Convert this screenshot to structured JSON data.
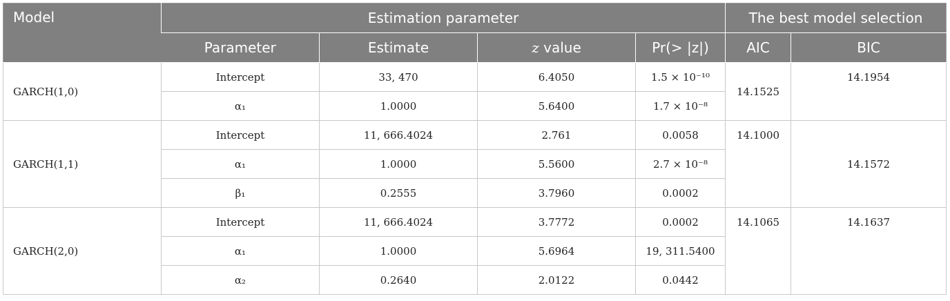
{
  "header": {
    "model": "Model",
    "estimation": "Estimation parameter",
    "best": "The best model selection",
    "parameter": "Parameter",
    "estimate": "Estimate",
    "z_var": "z",
    "z_value": " value",
    "pr": "Pr(> |z|)",
    "aic": "AIC",
    "bic": "BIC"
  },
  "groups": [
    {
      "model": "GARCH(1,0)",
      "aic": "14.1525",
      "bic": "14.1954",
      "rows": [
        {
          "parameter": "Intercept",
          "estimate": "33, 470",
          "z": "6.4050",
          "pr": "1.5 × 10⁻¹⁰"
        },
        {
          "parameter": "α₁",
          "estimate": "1.0000",
          "z": "5.6400",
          "pr": "1.7 × 10⁻⁸"
        }
      ]
    },
    {
      "model": "GARCH(1,1)",
      "aic": "14.1000",
      "bic": "14.1572",
      "rows": [
        {
          "parameter": "Intercept",
          "estimate": "11, 666.4024",
          "z": "2.761",
          "pr": "0.0058"
        },
        {
          "parameter": "α₁",
          "estimate": "1.0000",
          "z": "5.5600",
          "pr": "2.7 × 10⁻⁸"
        },
        {
          "parameter": "β₁",
          "estimate": "0.2555",
          "z": "3.7960",
          "pr": "0.0002"
        }
      ]
    },
    {
      "model": "GARCH(2,0)",
      "aic": "14.1065",
      "bic": "14.1637",
      "rows": [
        {
          "parameter": "Intercept",
          "estimate": "11, 666.4024",
          "z": "3.7772",
          "pr": "0.0002"
        },
        {
          "parameter": "α₁",
          "estimate": "1.0000",
          "z": "5.6964",
          "pr": "19, 311.5400"
        },
        {
          "parameter": "α₂",
          "estimate": "0.2640",
          "z": "2.0122",
          "pr": "0.0442"
        }
      ]
    }
  ]
}
